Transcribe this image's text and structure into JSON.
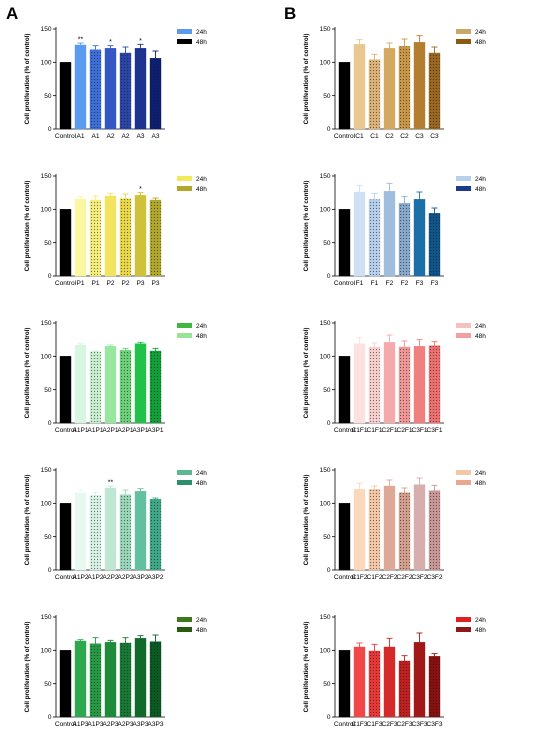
{
  "figure": {
    "panel_a": "A",
    "panel_b": "B",
    "ylabel": "Cell proliferation (% of control)"
  },
  "chart_data": [
    {
      "type": "bar",
      "col": 0,
      "row": 0,
      "categories": [
        "Control",
        "A1",
        "A1",
        "A2",
        "A2",
        "A3",
        "A3"
      ],
      "values": [
        100,
        126,
        119,
        121,
        114,
        121,
        106
      ],
      "errors": [
        0,
        3,
        6,
        4,
        9,
        6,
        11
      ],
      "colors": [
        "#000000",
        "#5b9bef",
        "#3d6fd9",
        "#3557c4",
        "#2b45a8",
        "#1d3390",
        "#0d1f70"
      ],
      "fill": [
        "solid",
        "solid",
        "dots",
        "solid",
        "dots",
        "solid",
        "dots"
      ],
      "annotations": [
        "",
        "**",
        "",
        "*",
        "",
        "*",
        ""
      ],
      "legend": [
        {
          "name": "24h",
          "color": "#5b9bef"
        },
        {
          "name": "48h",
          "color": "#000000"
        }
      ],
      "ylabel": "Cell proliferation (% of control)",
      "ylim": [
        0,
        150
      ],
      "yticks": [
        0,
        50,
        100,
        150
      ]
    },
    {
      "type": "bar",
      "col": 0,
      "row": 1,
      "categories": [
        "Control",
        "P1",
        "P1",
        "P2",
        "P2",
        "P3",
        "P3"
      ],
      "values": [
        100,
        115,
        114,
        120,
        116,
        121,
        114
      ],
      "errors": [
        0,
        4,
        6,
        4,
        7,
        4,
        3
      ],
      "colors": [
        "#000000",
        "#fbf7a0",
        "#f5ee7e",
        "#f2e45e",
        "#e8d84a",
        "#cfc23a",
        "#b3a82e"
      ],
      "fill": [
        "solid",
        "solid",
        "dots",
        "solid",
        "dots",
        "solid",
        "dots"
      ],
      "annotations": [
        "",
        "",
        "",
        "",
        "",
        "*",
        ""
      ],
      "legend": [
        {
          "name": "24h",
          "color": "#f2ea5a"
        },
        {
          "name": "48h",
          "color": "#b3a82e"
        }
      ],
      "ylabel": "Cell proliferation (% of control)",
      "ylim": [
        0,
        150
      ],
      "yticks": [
        0,
        50,
        100,
        150
      ]
    },
    {
      "type": "bar",
      "col": 0,
      "row": 2,
      "categories": [
        "Control",
        "A1P1",
        "A1P1",
        "A2P1",
        "A2P1",
        "A3P1",
        "A3P1"
      ],
      "values": [
        100,
        117,
        107,
        115,
        109,
        119,
        108
      ],
      "errors": [
        0,
        2,
        1,
        2,
        3,
        2,
        4
      ],
      "colors": [
        "#000000",
        "#d8f7e0",
        "#c8f0d0",
        "#98e6a0",
        "#6cd27a",
        "#22c24a",
        "#12a03a"
      ],
      "fill": [
        "solid",
        "solid",
        "dots",
        "solid",
        "dots",
        "solid",
        "dots"
      ],
      "annotations": [
        "",
        "",
        "",
        "",
        "",
        "",
        ""
      ],
      "legend": [
        {
          "name": "24h",
          "color": "#3eb83e"
        },
        {
          "name": "48h",
          "color": "#9ae29a"
        }
      ],
      "ylabel": "Cell proliferation (% of control)",
      "ylim": [
        0,
        150
      ],
      "yticks": [
        0,
        50,
        100,
        150
      ]
    },
    {
      "type": "bar",
      "col": 0,
      "row": 3,
      "categories": [
        "Control",
        "A1P2",
        "A1P2",
        "A2P2",
        "A2P2",
        "A3P2",
        "A3P2"
      ],
      "values": [
        100,
        116,
        112,
        123,
        113,
        118,
        106
      ],
      "errors": [
        0,
        4,
        4,
        3,
        7,
        4,
        2
      ],
      "colors": [
        "#000000",
        "#e8faf0",
        "#d6f2e4",
        "#bfe6d2",
        "#9ad6bb",
        "#62c0a0",
        "#40a888"
      ],
      "fill": [
        "solid",
        "solid",
        "dots",
        "solid",
        "dots",
        "solid",
        "dots"
      ],
      "annotations": [
        "",
        "",
        "",
        "**",
        "",
        "",
        ""
      ],
      "legend": [
        {
          "name": "24h",
          "color": "#5cb894"
        },
        {
          "name": "48h",
          "color": "#2e8f6c"
        }
      ],
      "ylabel": "Cell proliferation (% of control)",
      "ylim": [
        0,
        150
      ],
      "yticks": [
        0,
        50,
        100,
        150
      ]
    },
    {
      "type": "bar",
      "col": 0,
      "row": 4,
      "categories": [
        "Control",
        "A1P3",
        "A1P3",
        "A2P3",
        "A2P3",
        "A3P3",
        "A3P3"
      ],
      "values": [
        100,
        114,
        110,
        112,
        111,
        118,
        113
      ],
      "errors": [
        0,
        2,
        9,
        3,
        8,
        4,
        10
      ],
      "colors": [
        "#000000",
        "#2ea84e",
        "#269a44",
        "#1e8a3a",
        "#177a32",
        "#106a2a",
        "#0a5a22"
      ],
      "fill": [
        "solid",
        "solid",
        "dots",
        "solid",
        "dots",
        "solid",
        "dots"
      ],
      "annotations": [
        "",
        "",
        "",
        "",
        "",
        "",
        ""
      ],
      "legend": [
        {
          "name": "24h",
          "color": "#3a7a1a"
        },
        {
          "name": "48h",
          "color": "#2a5a10"
        }
      ],
      "ylabel": "Cell proliferation (% of control)",
      "ylim": [
        0,
        150
      ],
      "yticks": [
        0,
        50,
        100,
        150
      ]
    },
    {
      "type": "bar",
      "col": 1,
      "row": 0,
      "categories": [
        "Control",
        "C1",
        "C1",
        "C2",
        "C2",
        "C3",
        "C3"
      ],
      "values": [
        100,
        127,
        104,
        121,
        124,
        130,
        114
      ],
      "errors": [
        0,
        7,
        8,
        8,
        11,
        10,
        9
      ],
      "colors": [
        "#000000",
        "#e8c890",
        "#dcb478",
        "#d4a860",
        "#c89848",
        "#b47e30",
        "#9a6820"
      ],
      "fill": [
        "solid",
        "solid",
        "dots",
        "solid",
        "dots",
        "solid",
        "dots"
      ],
      "annotations": [
        "",
        "",
        "",
        "",
        "",
        "",
        ""
      ],
      "legend": [
        {
          "name": "24h",
          "color": "#c8a868"
        },
        {
          "name": "48h",
          "color": "#8a5a10"
        }
      ],
      "ylabel": "Cell proliferation (% of control)",
      "ylim": [
        0,
        150
      ],
      "yticks": [
        0,
        50,
        100,
        150
      ]
    },
    {
      "type": "bar",
      "col": 1,
      "row": 1,
      "categories": [
        "Control",
        "F1",
        "F1",
        "F2",
        "F2",
        "F3",
        "F3"
      ],
      "values": [
        100,
        126,
        115,
        127,
        109,
        115,
        94
      ],
      "errors": [
        0,
        10,
        9,
        12,
        10,
        11,
        8
      ],
      "colors": [
        "#000000",
        "#cfe0f5",
        "#b8d0ee",
        "#a0bcde",
        "#88a8cc",
        "#1d6fa8",
        "#10558a"
      ],
      "fill": [
        "solid",
        "solid",
        "dots",
        "solid",
        "dots",
        "solid",
        "dots"
      ],
      "annotations": [
        "",
        "",
        "",
        "",
        "",
        "",
        ""
      ],
      "legend": [
        {
          "name": "24h",
          "color": "#b8d0ee"
        },
        {
          "name": "48h",
          "color": "#1d3a8a"
        }
      ],
      "ylabel": "Cell proliferation (% of control)",
      "ylim": [
        0,
        150
      ],
      "yticks": [
        0,
        50,
        100,
        150
      ]
    },
    {
      "type": "bar",
      "col": 1,
      "row": 2,
      "categories": [
        "Control",
        "C1F1",
        "C1F1",
        "C2F1",
        "C2F1",
        "C3F1",
        "C3F1"
      ],
      "values": [
        100,
        119,
        114,
        121,
        114,
        115,
        116
      ],
      "errors": [
        0,
        9,
        6,
        11,
        9,
        10,
        6
      ],
      "colors": [
        "#000000",
        "#fde0e0",
        "#f8d0d0",
        "#f4aaaa",
        "#f09898",
        "#f08080",
        "#ee7070"
      ],
      "fill": [
        "solid",
        "solid",
        "dots",
        "solid",
        "dots",
        "solid",
        "dots"
      ],
      "annotations": [
        "",
        "",
        "",
        "",
        "",
        "",
        ""
      ],
      "legend": [
        {
          "name": "24h",
          "color": "#f5c0c0"
        },
        {
          "name": "48h",
          "color": "#f0a0a0"
        }
      ],
      "ylabel": "Cell proliferation (% of control)",
      "ylim": [
        0,
        150
      ],
      "yticks": [
        0,
        50,
        100,
        150
      ]
    },
    {
      "type": "bar",
      "col": 1,
      "row": 3,
      "categories": [
        "Control",
        "C1F2",
        "C1F2",
        "C2F2",
        "C2F2",
        "C3F2",
        "C3F2"
      ],
      "values": [
        100,
        121,
        121,
        126,
        116,
        128,
        119
      ],
      "errors": [
        0,
        9,
        5,
        9,
        7,
        10,
        8
      ],
      "colors": [
        "#000000",
        "#fad8bc",
        "#f5c8a8",
        "#dea896",
        "#d4a08e",
        "#d6aeae",
        "#c89898"
      ],
      "fill": [
        "solid",
        "solid",
        "dots",
        "solid",
        "dots",
        "solid",
        "dots"
      ],
      "annotations": [
        "",
        "",
        "",
        "",
        "",
        "",
        ""
      ],
      "legend": [
        {
          "name": "24h",
          "color": "#f0c8a8"
        },
        {
          "name": "48h",
          "color": "#e8a890"
        }
      ],
      "ylabel": "Cell proliferation (% of control)",
      "ylim": [
        0,
        150
      ],
      "yticks": [
        0,
        50,
        100,
        150
      ]
    },
    {
      "type": "bar",
      "col": 1,
      "row": 4,
      "categories": [
        "Control",
        "C1F3",
        "C1F3",
        "C2F3",
        "C2F3",
        "C3F3",
        "C3F3"
      ],
      "values": [
        100,
        105,
        99,
        105,
        84,
        112,
        91
      ],
      "errors": [
        0,
        6,
        10,
        13,
        8,
        14,
        4
      ],
      "colors": [
        "#000000",
        "#f04848",
        "#e83838",
        "#d42a2a",
        "#c02020",
        "#a01818",
        "#881010"
      ],
      "fill": [
        "solid",
        "solid",
        "dots",
        "solid",
        "dots",
        "solid",
        "dots"
      ],
      "annotations": [
        "",
        "",
        "",
        "",
        "",
        "",
        ""
      ],
      "legend": [
        {
          "name": "24h",
          "color": "#e02020"
        },
        {
          "name": "48h",
          "color": "#8a1a1a"
        }
      ],
      "ylabel": "Cell proliferation (% of control)",
      "ylim": [
        0,
        150
      ],
      "yticks": [
        0,
        50,
        100,
        150
      ]
    }
  ]
}
